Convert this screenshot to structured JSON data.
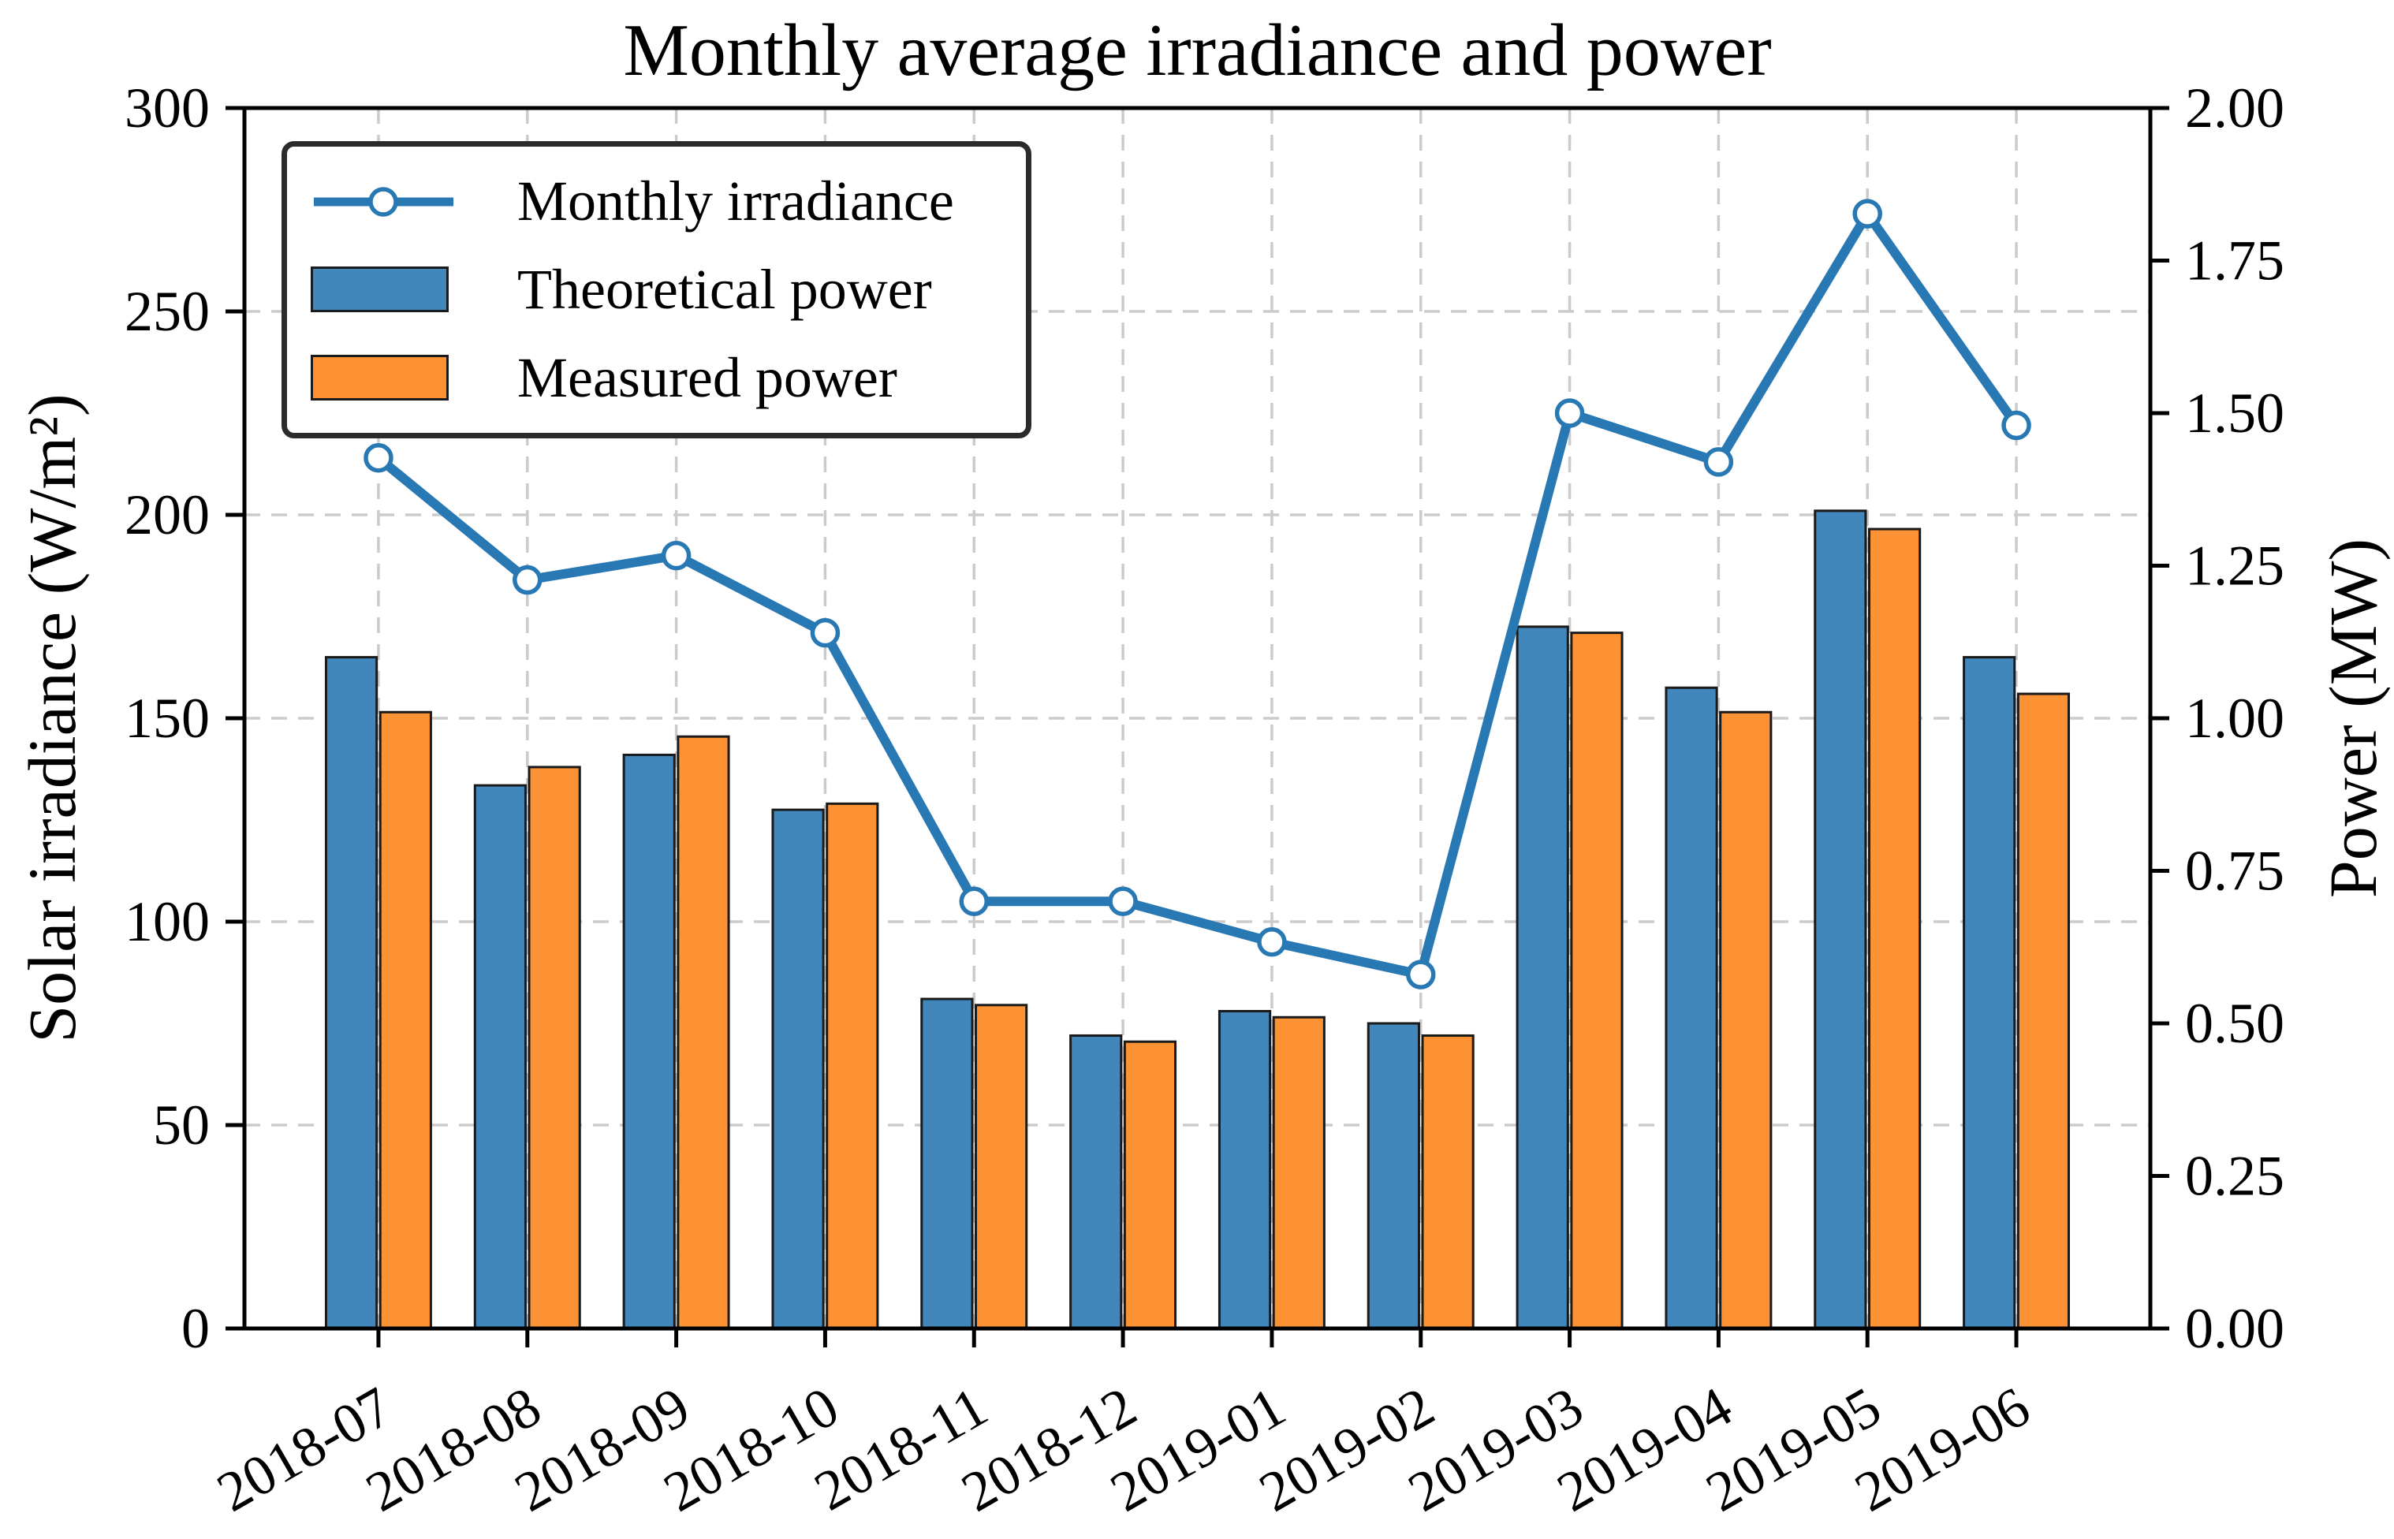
{
  "chart_data": {
    "type": "combo",
    "title": "Monthly average irradiance and power",
    "categories": [
      "2018-07",
      "2018-08",
      "2018-09",
      "2018-10",
      "2018-11",
      "2018-12",
      "2019-01",
      "2019-02",
      "2019-03",
      "2019-04",
      "2019-05",
      "2019-06"
    ],
    "series": [
      {
        "name": "Monthly irradiance",
        "type": "line",
        "axis": "left",
        "unit": "W/m²",
        "values": [
          214,
          184,
          190,
          171,
          105,
          105,
          95,
          87,
          225,
          213,
          274,
          222
        ]
      },
      {
        "name": "Theoretical power",
        "type": "bar",
        "axis": "right",
        "unit": "MW",
        "values": [
          1.1,
          0.89,
          0.94,
          0.85,
          0.54,
          0.48,
          0.52,
          0.5,
          1.15,
          1.05,
          1.34,
          1.1
        ]
      },
      {
        "name": "Measured power",
        "type": "bar",
        "axis": "right",
        "unit": "MW",
        "values": [
          1.01,
          0.92,
          0.97,
          0.86,
          0.53,
          0.47,
          0.51,
          0.48,
          1.14,
          1.01,
          1.31,
          1.04
        ]
      }
    ],
    "left_axis": {
      "label": "Solar irradiance (W/m²)",
      "min": 0,
      "max": 300,
      "tick_step": 50,
      "tick_labels": [
        "0",
        "50",
        "100",
        "150",
        "200",
        "250",
        "300"
      ]
    },
    "right_axis": {
      "label": "Power (MW)",
      "min": 0,
      "max": 2,
      "tick_step": 0.25,
      "tick_labels": [
        "0.00",
        "0.25",
        "0.50",
        "0.75",
        "1.00",
        "1.25",
        "1.50",
        "1.75",
        "2.00"
      ]
    },
    "grid": true,
    "legend_position": "upper-left",
    "x_tick_rotation_deg": 30
  },
  "legend": {
    "items": [
      {
        "label": "Monthly irradiance",
        "kind": "line-marker"
      },
      {
        "label": "Theoretical power",
        "kind": "patch-blue"
      },
      {
        "label": "Measured power",
        "kind": "patch-orange"
      }
    ]
  },
  "colors": {
    "bar_blue": "#4187BC",
    "bar_orange": "#FC9233",
    "line_blue": "#2878B4",
    "marker_face": "#FFFFFF",
    "grid": "#CBCBCB",
    "bar_edge": "#1A1A1A",
    "legend_border": "#2B2B2B",
    "spine": "#000000",
    "background": "#FFFFFF"
  }
}
